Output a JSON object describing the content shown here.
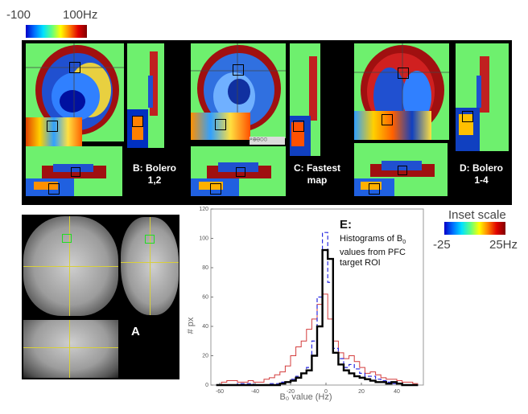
{
  "colorbar_top": {
    "min_label": "-100",
    "max_label": "100Hz"
  },
  "colorbar_inset": {
    "title": "Inset scale",
    "min_label": "-25",
    "max_label": "25Hz"
  },
  "panels": {
    "b": {
      "caption_line1": "B: Bolero",
      "caption_line2": "1,2"
    },
    "c": {
      "caption_line1": "C: Fastest",
      "caption_line2": "map"
    },
    "d": {
      "caption_line1": "D: Bolero",
      "caption_line2": "1-4"
    },
    "a": {
      "caption": "A"
    },
    "e": {
      "label": "E:",
      "desc_line1": "Histograms of B",
      "desc_sub": "0",
      "desc_line2": "values from PFC",
      "desc_line3": "target ROI"
    }
  },
  "chart_data": {
    "type": "line",
    "xlabel": "B₀ value (Hz)",
    "ylabel": "# px",
    "xlim": [
      -65,
      55
    ],
    "ylim": [
      0,
      120
    ],
    "x_ticks": [
      -60,
      -40,
      -20,
      0,
      20,
      40
    ],
    "y_ticks": [
      0,
      20,
      40,
      60,
      80,
      100,
      120
    ],
    "grid": false,
    "series": [
      {
        "color": "#d43c3c",
        "style": "solid-thin",
        "bin_edges": [
          -62,
          -59,
          -56,
          -53,
          -50,
          -47,
          -44,
          -41,
          -38,
          -35,
          -32,
          -29,
          -26,
          -23,
          -20,
          -17,
          -14,
          -11,
          -8,
          -5,
          -2,
          1,
          4,
          7,
          10,
          13,
          16,
          19,
          22,
          25,
          28,
          31,
          34,
          37,
          40,
          43,
          46,
          49,
          52
        ],
        "values": [
          0,
          2,
          3,
          3,
          2,
          2,
          3,
          2,
          2,
          4,
          5,
          7,
          9,
          13,
          20,
          26,
          30,
          38,
          45,
          55,
          62,
          45,
          30,
          22,
          18,
          20,
          16,
          12,
          8,
          9,
          7,
          5,
          4,
          4,
          3,
          2,
          2,
          1
        ]
      },
      {
        "color": "#2a2ae0",
        "style": "dashed",
        "bin_edges": [
          -62,
          -59,
          -56,
          -53,
          -50,
          -47,
          -44,
          -41,
          -38,
          -35,
          -32,
          -29,
          -26,
          -23,
          -20,
          -17,
          -14,
          -11,
          -8,
          -5,
          -2,
          1,
          4,
          7,
          10,
          13,
          16,
          19,
          22,
          25,
          28,
          31,
          34,
          37,
          40,
          43,
          46,
          49,
          52
        ],
        "values": [
          0,
          0,
          0,
          0,
          1,
          1,
          1,
          0,
          0,
          0,
          1,
          1,
          2,
          2,
          4,
          6,
          8,
          12,
          30,
          60,
          104,
          70,
          25,
          18,
          12,
          14,
          11,
          8,
          6,
          6,
          4,
          3,
          2,
          1,
          1,
          0,
          0,
          0
        ]
      },
      {
        "color": "#000000",
        "style": "solid-thick",
        "bin_edges": [
          -62,
          -59,
          -56,
          -53,
          -50,
          -47,
          -44,
          -41,
          -38,
          -35,
          -32,
          -29,
          -26,
          -23,
          -20,
          -17,
          -14,
          -11,
          -8,
          -5,
          -2,
          1,
          4,
          7,
          10,
          13,
          16,
          19,
          22,
          25,
          28,
          31,
          34,
          37,
          40,
          43,
          46,
          49,
          52
        ],
        "values": [
          0,
          0,
          0,
          0,
          0,
          0,
          0,
          0,
          0,
          0,
          0,
          0,
          1,
          2,
          3,
          5,
          8,
          10,
          20,
          40,
          92,
          86,
          22,
          14,
          10,
          8,
          6,
          5,
          4,
          3,
          2,
          2,
          1,
          2,
          1,
          0,
          0,
          0
        ]
      }
    ]
  },
  "colors": {
    "map_bg": "#6ef06e",
    "roi_green": "#22dd22",
    "crosshair": "#d8cf3a"
  }
}
